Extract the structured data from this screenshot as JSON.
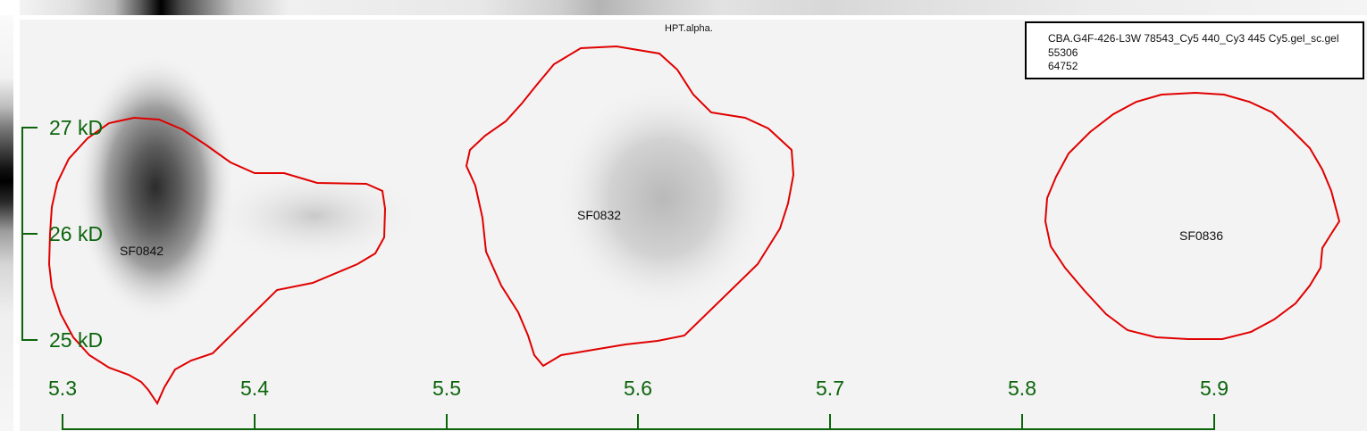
{
  "gel": {
    "title": "HPT.alpha.",
    "legend": {
      "filename": "CBA.G4F-426-L3W 78543_Cy5 440_Cy3 445 Cy5.gel_sc.gel",
      "line2": "55306",
      "line3": "64752"
    }
  },
  "spots": [
    {
      "id": "SF0842"
    },
    {
      "id": "SF0832"
    },
    {
      "id": "SF0836"
    }
  ],
  "mw_axis": {
    "ticks": [
      "27 kD",
      "26 kD",
      "25 kD"
    ]
  },
  "pi_axis": {
    "ticks": [
      "5.3",
      "5.4",
      "5.5",
      "5.6",
      "5.7",
      "5.8",
      "5.9"
    ]
  },
  "colors": {
    "outline": "#e00000",
    "axis": "#0c650c"
  }
}
